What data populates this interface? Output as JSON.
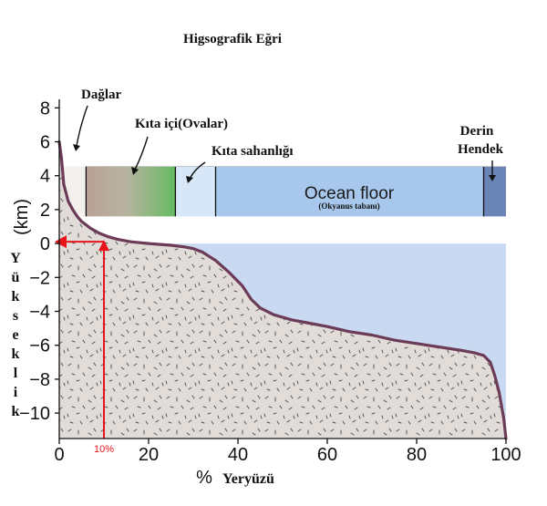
{
  "title": "Higsografik Eğri",
  "chart_data": {
    "type": "area",
    "xlabel": "% Yeryüzü",
    "ylabel_unit": "(km)",
    "ylabel": "Yükseklik",
    "xlim": [
      0,
      100
    ],
    "ylim": [
      -11.5,
      8.5
    ],
    "x_ticks": [
      0,
      20,
      40,
      60,
      80,
      100
    ],
    "y_ticks": [
      -10,
      -8,
      -6,
      -4,
      -2,
      0,
      2,
      4,
      6,
      8
    ],
    "grid": false,
    "series": [
      {
        "x": [
          0,
          0.5,
          1,
          2,
          3,
          4,
          5,
          7,
          9,
          11,
          13,
          16,
          20,
          25,
          28,
          30,
          32,
          35,
          38,
          41,
          43,
          45,
          48,
          52,
          56,
          60,
          65,
          70,
          75,
          80,
          85,
          90,
          93,
          95,
          96.5,
          97.5,
          98.5,
          99.5,
          100
        ],
        "y": [
          6.0,
          5.0,
          3.5,
          2.5,
          2.0,
          1.6,
          1.3,
          0.9,
          0.6,
          0.4,
          0.25,
          0.1,
          0.0,
          -0.1,
          -0.2,
          -0.3,
          -0.5,
          -1.0,
          -1.7,
          -2.5,
          -3.3,
          -3.8,
          -4.2,
          -4.5,
          -4.7,
          -4.9,
          -5.2,
          -5.4,
          -5.7,
          -5.9,
          -6.1,
          -6.3,
          -6.45,
          -6.6,
          -7.0,
          -7.8,
          -8.8,
          -10.3,
          -11.5
        ]
      }
    ],
    "bands": [
      {
        "label": "Dağlar",
        "x0": 0,
        "x1": 6,
        "color": "#ffffff"
      },
      {
        "label": "Kıta içi(Ovalar)",
        "x0": 6,
        "x1": 26,
        "color": "#74c26c"
      },
      {
        "label": "Kıta sahanlığı",
        "x0": 26,
        "x1": 35,
        "color": "#d8e7f7"
      },
      {
        "label": "Ocean floor",
        "sublabel": "(Okyanus tabanı)",
        "x0": 35,
        "x1": 95,
        "color": "#a7c8ec"
      },
      {
        "label": "Derin Hendek",
        "x0": 95,
        "x1": 100,
        "color": "#6b84b6"
      }
    ],
    "marker": {
      "x": 10,
      "label": "10%",
      "y": 0
    }
  },
  "colors": {
    "ocean": "#c9d9f1",
    "land": "#e1dcd8",
    "curve": "#6b3b57",
    "highlight": "#e8141c"
  }
}
